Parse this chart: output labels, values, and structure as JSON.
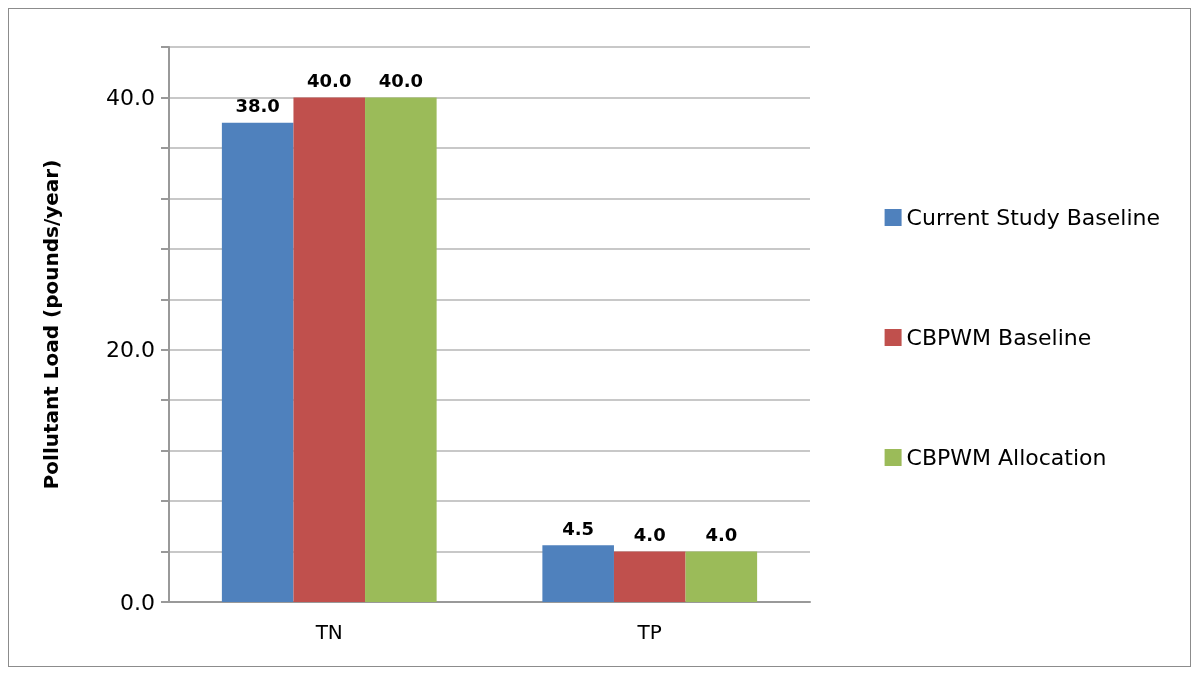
{
  "chart_data": {
    "type": "bar",
    "ylabel": "Pollutant Load (pounds/year)",
    "categories": [
      "TN",
      "TP"
    ],
    "series": [
      {
        "name": "Current Study Baseline",
        "color": "#4f81bd",
        "values": [
          38.0,
          4.5
        ],
        "value_labels": [
          "38.0",
          "4.5"
        ]
      },
      {
        "name": "CBPWM Baseline",
        "color": "#c0504d",
        "values": [
          40.0,
          4.0
        ],
        "value_labels": [
          "40.0",
          "4.0"
        ]
      },
      {
        "name": "CBPWM Allocation",
        "color": "#9bbb59",
        "values": [
          40.0,
          4.0
        ],
        "value_labels": [
          "40.0",
          "4.0"
        ]
      }
    ],
    "ylim": [
      0,
      44
    ],
    "yticks": [
      {
        "value": 0,
        "label": "0.0"
      },
      {
        "value": 4,
        "label": null
      },
      {
        "value": 8,
        "label": null
      },
      {
        "value": 12,
        "label": null
      },
      {
        "value": 16,
        "label": null
      },
      {
        "value": 20,
        "label": "20.0"
      },
      {
        "value": 24,
        "label": null
      },
      {
        "value": 28,
        "label": null
      },
      {
        "value": 32,
        "label": null
      },
      {
        "value": 36,
        "label": null
      },
      {
        "value": 40,
        "label": "40.0"
      },
      {
        "value": 44,
        "label": null
      }
    ],
    "grid": "y",
    "legend": "right"
  }
}
